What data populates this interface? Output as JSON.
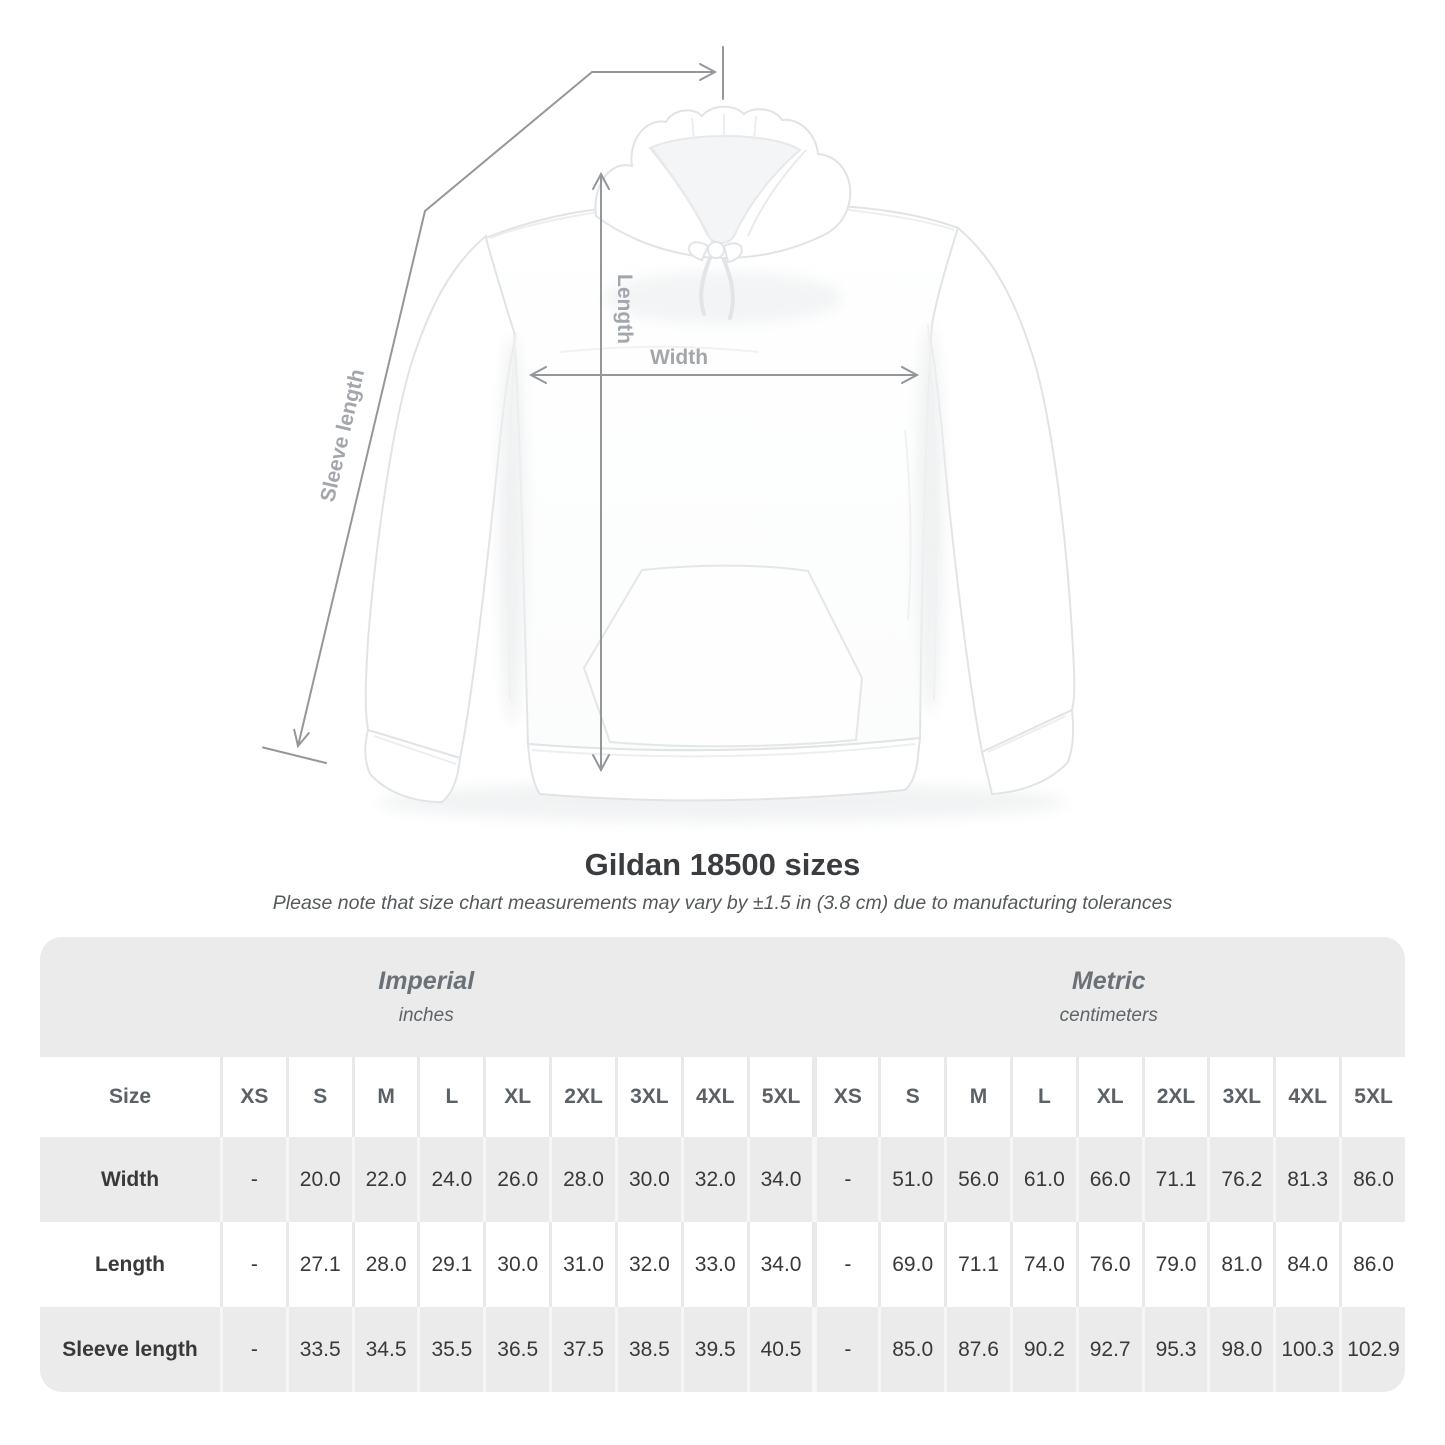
{
  "diagram": {
    "labels": {
      "width": "Width",
      "length": "Length",
      "sleeve_length": "Sleeve length"
    },
    "line_color": "#94979a",
    "label_color": "#a3a7ab"
  },
  "chart_data": {
    "type": "table",
    "title": "Gildan 18500 sizes",
    "note": "Please note that size chart measurements may vary by ±1.5 in (3.8 cm) due to manufacturing tolerances",
    "size_label": "Size",
    "sizes": [
      "XS",
      "S",
      "M",
      "L",
      "XL",
      "2XL",
      "3XL",
      "4XL",
      "5XL"
    ],
    "sections": [
      {
        "label": "Imperial",
        "unit": "inches"
      },
      {
        "label": "Metric",
        "unit": "centimeters"
      }
    ],
    "rows": [
      {
        "label": "Width",
        "imperial": [
          "-",
          "20.0",
          "22.0",
          "24.0",
          "26.0",
          "28.0",
          "30.0",
          "32.0",
          "34.0"
        ],
        "metric": [
          "-",
          "51.0",
          "56.0",
          "61.0",
          "66.0",
          "71.1",
          "76.2",
          "81.3",
          "86.0"
        ]
      },
      {
        "label": "Length",
        "imperial": [
          "-",
          "27.1",
          "28.0",
          "29.1",
          "30.0",
          "31.0",
          "32.0",
          "33.0",
          "34.0"
        ],
        "metric": [
          "-",
          "69.0",
          "71.1",
          "74.0",
          "76.0",
          "79.0",
          "81.0",
          "84.0",
          "86.0"
        ]
      },
      {
        "label": "Sleeve length",
        "imperial": [
          "-",
          "33.5",
          "34.5",
          "35.5",
          "36.5",
          "37.5",
          "38.5",
          "39.5",
          "40.5"
        ],
        "metric": [
          "-",
          "85.0",
          "87.6",
          "90.2",
          "92.7",
          "95.3",
          "98.0",
          "100.3",
          "102.9"
        ]
      }
    ],
    "colors": {
      "band": "#ebebeb",
      "row_shade": "#ebebeb",
      "row_light": "#ffffff",
      "header_text": "#5c6166",
      "value_text": "#38393b"
    }
  }
}
